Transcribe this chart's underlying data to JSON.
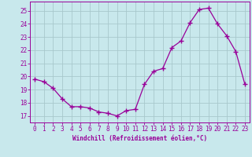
{
  "x": [
    0,
    1,
    2,
    3,
    4,
    5,
    6,
    7,
    8,
    9,
    10,
    11,
    12,
    13,
    14,
    15,
    16,
    17,
    18,
    19,
    20,
    21,
    22,
    23
  ],
  "y": [
    19.8,
    19.6,
    19.1,
    18.3,
    17.7,
    17.7,
    17.6,
    17.3,
    17.2,
    17.0,
    17.4,
    17.5,
    19.4,
    20.4,
    20.6,
    22.2,
    22.7,
    24.1,
    25.1,
    25.2,
    24.0,
    23.1,
    21.9,
    19.4
  ],
  "line_color": "#990099",
  "marker": "+",
  "marker_size": 4,
  "marker_lw": 1.0,
  "bg_color": "#c8e8ec",
  "grid_color": "#a8c8cc",
  "xlabel": "Windchill (Refroidissement éolien,°C)",
  "ylim": [
    16.5,
    25.7
  ],
  "yticks": [
    17,
    18,
    19,
    20,
    21,
    22,
    23,
    24,
    25
  ],
  "color": "#990099",
  "tick_fontsize": 5.5,
  "xlabel_fontsize": 5.5
}
